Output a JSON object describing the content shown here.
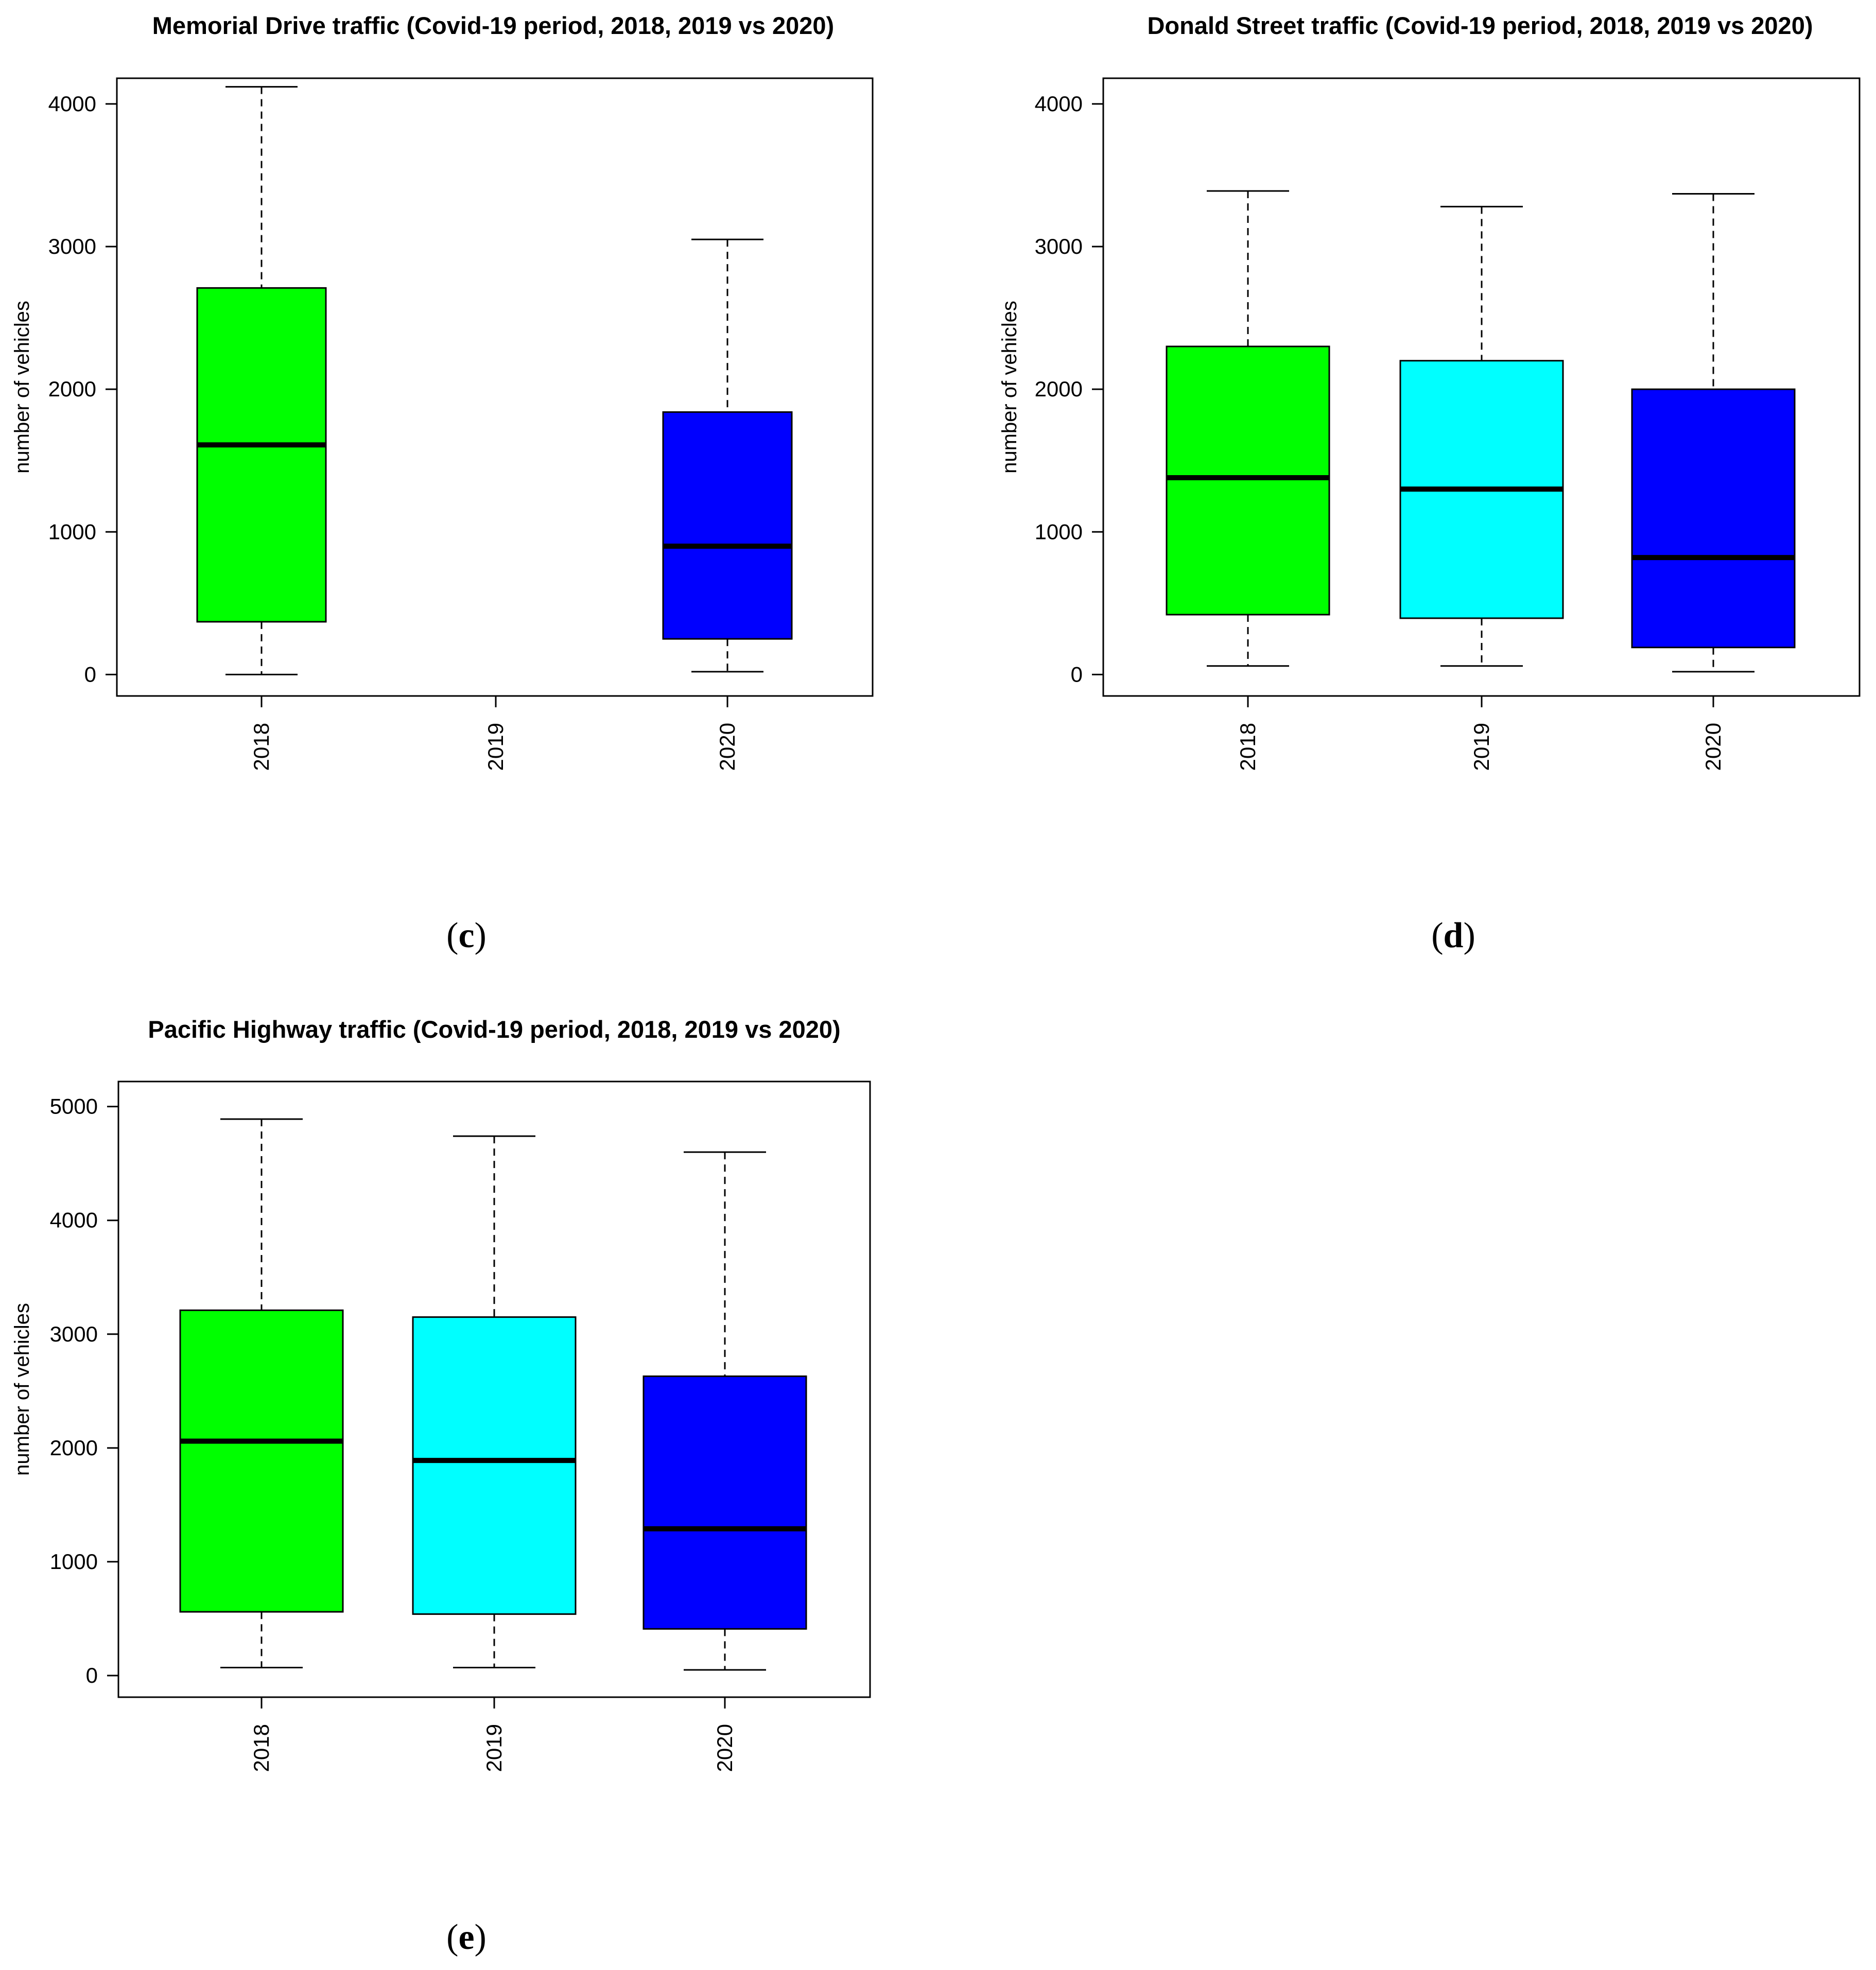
{
  "chart_data": [
    {
      "type": "boxplot",
      "panel": "(c)",
      "panel_letter": "c",
      "title": "Memorial Drive traffic (Covid-19 period, 2018, 2019 vs 2020)",
      "ylabel": "number of vehicles",
      "xlabel": "",
      "categories": [
        "2018",
        "2019",
        "2020"
      ],
      "yticks": [
        0,
        1000,
        2000,
        3000,
        4000
      ],
      "ylim": [
        -150,
        4180
      ],
      "grid": false,
      "boxes": [
        {
          "category": "2018",
          "color": "#00ff00",
          "min": 0,
          "q1": 370,
          "median": 1610,
          "q3": 2710,
          "max": 4120
        },
        {
          "category": "2019",
          "empty": true
        },
        {
          "category": "2020",
          "color": "#0000ff",
          "min": 20,
          "q1": 250,
          "median": 900,
          "q3": 1840,
          "max": 3050
        }
      ]
    },
    {
      "type": "boxplot",
      "panel": "(d)",
      "panel_letter": "d",
      "title": "Donald Street traffic (Covid-19 period, 2018, 2019 vs 2020)",
      "ylabel": "number of vehicles",
      "xlabel": "",
      "categories": [
        "2018",
        "2019",
        "2020"
      ],
      "yticks": [
        0,
        1000,
        2000,
        3000,
        4000
      ],
      "ylim": [
        -150,
        4180
      ],
      "grid": false,
      "boxes": [
        {
          "category": "2018",
          "color": "#00ff00",
          "min": 60,
          "q1": 420,
          "median": 1380,
          "q3": 2300,
          "max": 3390
        },
        {
          "category": "2019",
          "color": "#00ffff",
          "min": 60,
          "q1": 395,
          "median": 1300,
          "q3": 2200,
          "max": 3280
        },
        {
          "category": "2020",
          "color": "#0000ff",
          "min": 20,
          "q1": 190,
          "median": 820,
          "q3": 2000,
          "max": 3370
        }
      ]
    },
    {
      "type": "boxplot",
      "panel": "(e)",
      "panel_letter": "e",
      "title": "Pacific Highway traffic (Covid-19 period, 2018, 2019 vs 2020)",
      "ylabel": "number of vehicles",
      "xlabel": "",
      "categories": [
        "2018",
        "2019",
        "2020"
      ],
      "yticks": [
        0,
        1000,
        2000,
        3000,
        4000,
        5000
      ],
      "ylim": [
        -190,
        5220
      ],
      "grid": false,
      "boxes": [
        {
          "category": "2018",
          "color": "#00ff00",
          "min": 70,
          "q1": 560,
          "median": 2060,
          "q3": 3210,
          "max": 4890
        },
        {
          "category": "2019",
          "color": "#00ffff",
          "min": 70,
          "q1": 540,
          "median": 1890,
          "q3": 3150,
          "max": 4740
        },
        {
          "category": "2020",
          "color": "#0000ff",
          "min": 50,
          "q1": 410,
          "median": 1290,
          "q3": 2630,
          "max": 4600
        }
      ]
    }
  ]
}
